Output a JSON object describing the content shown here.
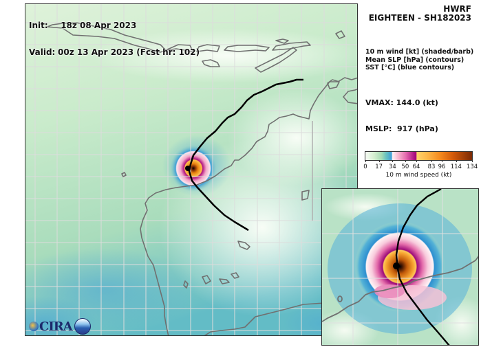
{
  "header": {
    "init_label": "Init:",
    "init_value": "18z 08 Apr 2023",
    "valid_label": "Valid:",
    "valid_value": "00z 13 Apr 2023 (Fcst hr: 102)"
  },
  "panel": {
    "model": "HWRF",
    "storm": "EIGHTEEN - SH182023",
    "fields": [
      "10 m wind [kt] (shaded/barb)",
      "Mean SLP [hPa] (contours)",
      "SST [°C] (blue contours)"
    ],
    "vmax": "VMAX: 144.0 (kt)",
    "mslp": "MSLP:  917 (hPa)"
  },
  "colorbar": {
    "label": "10 m wind speed (kt)",
    "ticks": [
      "0",
      "17",
      "34",
      "50",
      "64",
      "83",
      "96",
      "114",
      "134"
    ],
    "tick_values": [
      0,
      17,
      34,
      50,
      64,
      83,
      96,
      114,
      134
    ],
    "segments": [
      {
        "range": "0-34",
        "colors": [
          "#f7fcf5",
          "#a8dcb5",
          "#3f9fd6"
        ]
      },
      {
        "range": "34-64",
        "colors": [
          "#fff0f3",
          "#e56aae",
          "#a0007a"
        ]
      },
      {
        "range": "64-134",
        "colors": [
          "#ffd36b",
          "#f58a1e",
          "#7a2a05"
        ]
      }
    ]
  },
  "map": {
    "storm_center_main": [
      272,
      244
    ],
    "storm_center_inset": [
      575,
      387
    ],
    "track_color": "#000000",
    "coastline_color": "#707070",
    "grid_color": "#d8d8d8"
  },
  "logo": {
    "text": "CIRA"
  }
}
